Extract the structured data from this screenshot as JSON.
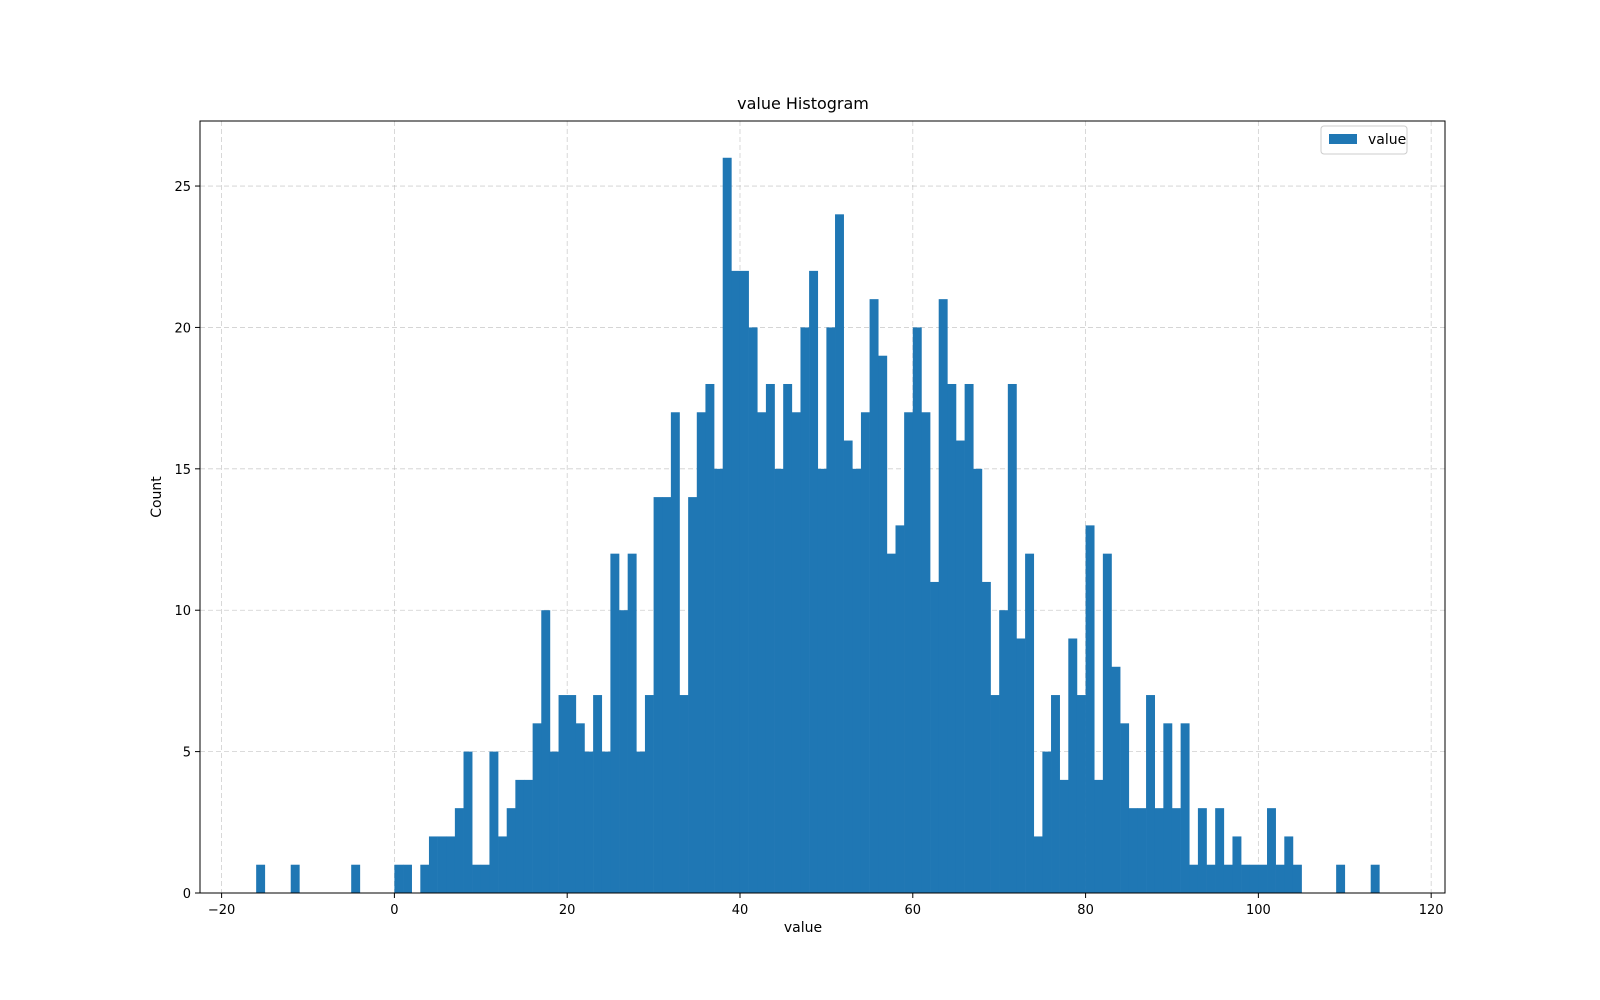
{
  "chart_data": {
    "type": "bar",
    "title": "value Histogram",
    "xlabel": "value",
    "ylabel": "Count",
    "xlim": [
      -22.5,
      121.6
    ],
    "ylim": [
      0,
      27.3
    ],
    "xticks": [
      -20,
      0,
      20,
      40,
      60,
      80,
      100,
      120
    ],
    "yticks": [
      0,
      5,
      10,
      15,
      20,
      25
    ],
    "grid": true,
    "legend": {
      "position": "top-right",
      "entries": [
        "value"
      ]
    },
    "color": "#1f77b4",
    "bin_start": -16.0,
    "bin_width": 1.0,
    "series": [
      {
        "name": "value",
        "values": [
          1,
          0,
          0,
          0,
          1,
          0,
          0,
          0,
          0,
          0,
          0,
          1,
          0,
          0,
          0,
          0,
          1,
          1,
          0,
          1,
          2,
          2,
          2,
          3,
          5,
          1,
          1,
          5,
          2,
          3,
          4,
          4,
          6,
          10,
          5,
          7,
          7,
          6,
          5,
          7,
          5,
          12,
          10,
          12,
          5,
          7,
          14,
          14,
          17,
          7,
          14,
          17,
          18,
          15,
          26,
          22,
          22,
          20,
          17,
          18,
          15,
          18,
          17,
          20,
          22,
          15,
          20,
          24,
          16,
          15,
          17,
          21,
          19,
          12,
          13,
          17,
          20,
          17,
          11,
          21,
          18,
          16,
          18,
          15,
          11,
          7,
          10,
          18,
          9,
          12,
          2,
          5,
          7,
          4,
          9,
          7,
          13,
          4,
          12,
          8,
          6,
          3,
          3,
          7,
          3,
          6,
          3,
          6,
          1,
          3,
          1,
          3,
          1,
          2,
          1,
          1,
          1,
          3,
          1,
          2,
          1,
          0,
          0,
          0,
          0,
          1,
          0,
          0,
          0,
          1
        ]
      }
    ]
  }
}
